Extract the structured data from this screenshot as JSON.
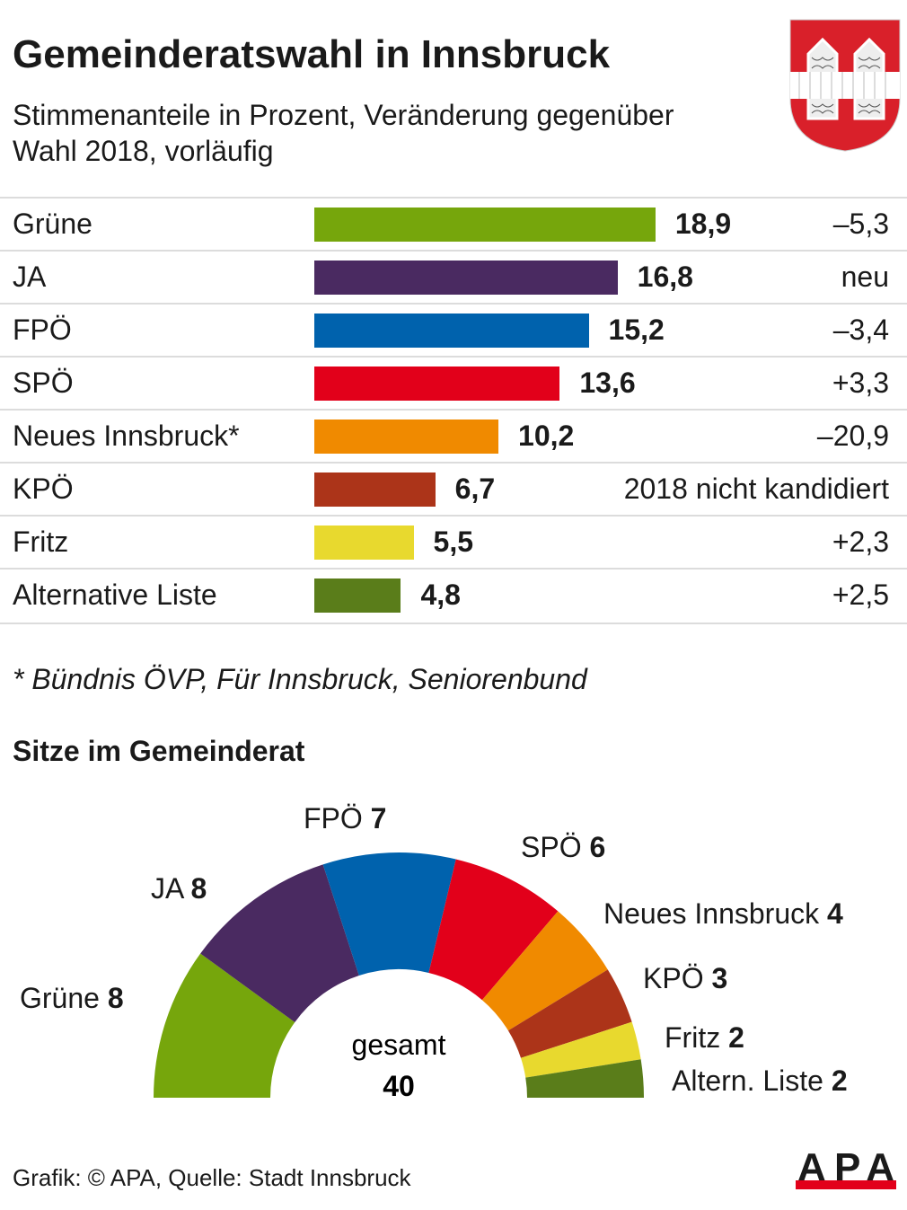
{
  "header": {
    "title": "Gemeinderatswahl in Innsbruck",
    "subtitle": "Stimmenanteile in Prozent, Veränderung gegenüber Wahl 2018, vorläufig"
  },
  "footnote": "* Bündnis ÖVP, Für Innsbruck, Seniorenbund",
  "source": "Grafik: © APA, Quelle: Stadt Innsbruck",
  "logo": {
    "text": "APA",
    "colors": {
      "letters": "#1a1a1a",
      "bar": "#e2001a"
    }
  },
  "coat_of_arms": {
    "colors": {
      "field": "#d9202a",
      "band": "#ffffff"
    }
  },
  "chart_data": [
    {
      "type": "bar",
      "orientation": "horizontal",
      "title": "",
      "categories": [
        "Grüne",
        "JA",
        "FPÖ",
        "SPÖ",
        "Neues Innsbruck*",
        "KPÖ",
        "Fritz",
        "Alternative Liste"
      ],
      "values": [
        18.9,
        16.8,
        15.2,
        13.6,
        10.2,
        6.7,
        5.5,
        4.8
      ],
      "value_labels": [
        "18,9",
        "16,8",
        "15,2",
        "13,6",
        "10,2",
        "6,7",
        "5,5",
        "4,8"
      ],
      "changes": [
        "–5,3",
        "neu",
        "–3,4",
        "+3,3",
        "–20,9",
        "2018 nicht kandidiert",
        "+2,3",
        "+2,5"
      ],
      "colors": [
        "#76a60c",
        "#4a2a61",
        "#0062ad",
        "#e2001a",
        "#f08a00",
        "#ac3419",
        "#e8d92e",
        "#5a7d1a"
      ]
    },
    {
      "type": "pie",
      "variant": "half-donut",
      "title": "Sitze im Gemeinderat",
      "categories": [
        "Grüne",
        "JA",
        "FPÖ",
        "SPÖ",
        "Neues Innsbruck",
        "KPÖ",
        "Fritz",
        "Altern. Liste"
      ],
      "values": [
        8,
        8,
        7,
        6,
        4,
        3,
        2,
        2
      ],
      "colors": [
        "#76a60c",
        "#4a2a61",
        "#0062ad",
        "#e2001a",
        "#f08a00",
        "#ac3419",
        "#e8d92e",
        "#5a7d1a"
      ],
      "total_label": "gesamt",
      "total": "40"
    }
  ]
}
